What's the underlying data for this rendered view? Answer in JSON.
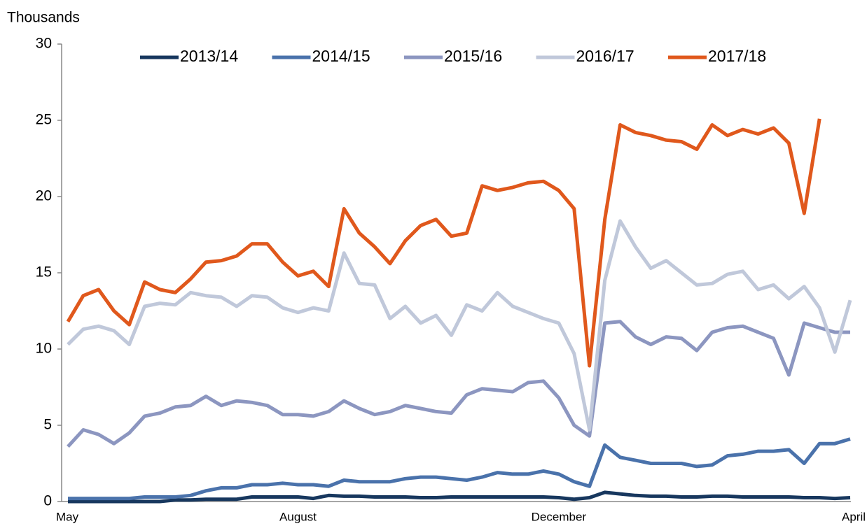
{
  "chart_data": {
    "type": "line",
    "y_label": "Thousands",
    "categories": [
      "May",
      null,
      null,
      null,
      null,
      null,
      null,
      null,
      null,
      null,
      null,
      null,
      null,
      null,
      null,
      "August",
      null,
      null,
      null,
      null,
      null,
      null,
      null,
      null,
      null,
      null,
      null,
      null,
      null,
      null,
      null,
      null,
      "December",
      null,
      null,
      null,
      null,
      null,
      null,
      null,
      null,
      null,
      null,
      null,
      null,
      null,
      null,
      null,
      null,
      null,
      null,
      "April"
    ],
    "ylim": [
      0,
      30
    ],
    "yticks": [
      0,
      5,
      10,
      15,
      20,
      25,
      30
    ],
    "grid": false,
    "legend": "top",
    "series": [
      {
        "name": "2013/14",
        "color": "#17375e",
        "values": [
          0,
          0,
          0,
          0,
          0,
          0,
          0,
          0.1,
          0.1,
          0.15,
          0.15,
          0.15,
          0.3,
          0.3,
          0.3,
          0.3,
          0.2,
          0.4,
          0.35,
          0.35,
          0.3,
          0.3,
          0.3,
          0.25,
          0.25,
          0.3,
          0.3,
          0.3,
          0.3,
          0.3,
          0.3,
          0.3,
          0.25,
          0.15,
          0.25,
          0.6,
          0.5,
          0.4,
          0.35,
          0.35,
          0.3,
          0.3,
          0.35,
          0.35,
          0.3,
          0.3,
          0.3,
          0.3,
          0.25,
          0.25,
          0.2,
          0.25
        ]
      },
      {
        "name": "2014/15",
        "color": "#4a72ab",
        "values": [
          0.2,
          0.2,
          0.2,
          0.2,
          0.2,
          0.3,
          0.3,
          0.3,
          0.4,
          0.7,
          0.9,
          0.9,
          1.1,
          1.1,
          1.2,
          1.1,
          1.1,
          1.0,
          1.4,
          1.3,
          1.3,
          1.3,
          1.5,
          1.6,
          1.6,
          1.5,
          1.4,
          1.6,
          1.9,
          1.8,
          1.8,
          2.0,
          1.8,
          1.3,
          1.0,
          3.7,
          2.9,
          2.7,
          2.5,
          2.5,
          2.5,
          2.3,
          2.4,
          3.0,
          3.1,
          3.3,
          3.3,
          3.4,
          2.5,
          3.8,
          3.8,
          4.1
        ]
      },
      {
        "name": "2015/16",
        "color": "#8c96c0",
        "values": [
          3.6,
          4.7,
          4.4,
          3.8,
          4.5,
          5.6,
          5.8,
          6.2,
          6.3,
          6.9,
          6.3,
          6.6,
          6.5,
          6.3,
          5.7,
          5.7,
          5.6,
          5.9,
          6.6,
          6.1,
          5.7,
          5.9,
          6.3,
          6.1,
          5.9,
          5.8,
          7.0,
          7.4,
          7.3,
          7.2,
          7.8,
          7.9,
          6.8,
          5.0,
          4.3,
          11.7,
          11.8,
          10.8,
          10.3,
          10.8,
          10.7,
          9.9,
          11.1,
          11.4,
          11.5,
          11.1,
          10.7,
          8.3,
          11.7,
          11.4,
          11.1,
          11.1
        ]
      },
      {
        "name": "2016/17",
        "color": "#c0c8da",
        "values": [
          10.3,
          11.3,
          11.5,
          11.2,
          10.3,
          12.8,
          13.0,
          12.9,
          13.7,
          13.5,
          13.4,
          12.8,
          13.5,
          13.4,
          12.7,
          12.4,
          12.7,
          12.5,
          16.3,
          14.3,
          14.2,
          12.0,
          12.8,
          11.7,
          12.2,
          10.9,
          12.9,
          12.5,
          13.7,
          12.8,
          12.4,
          12.0,
          11.7,
          9.7,
          4.7,
          14.5,
          18.4,
          16.7,
          15.3,
          15.8,
          15.0,
          14.2,
          14.3,
          14.9,
          15.1,
          13.9,
          14.2,
          13.3,
          14.1,
          12.7,
          9.8,
          13.2
        ]
      },
      {
        "name": "2017/18",
        "color": "#e0581c",
        "values": [
          11.8,
          13.5,
          13.9,
          12.5,
          11.6,
          14.4,
          13.9,
          13.7,
          14.6,
          15.7,
          15.8,
          16.1,
          16.9,
          16.9,
          15.7,
          14.8,
          15.1,
          14.1,
          19.2,
          17.6,
          16.7,
          15.6,
          17.1,
          18.1,
          18.5,
          17.4,
          17.6,
          20.7,
          20.4,
          20.6,
          20.9,
          21.0,
          20.4,
          19.2,
          8.9,
          18.5,
          24.7,
          24.2,
          24.0,
          23.7,
          23.6,
          23.1,
          24.7,
          24.0,
          24.4,
          24.1,
          24.5,
          23.5,
          18.9,
          25.1,
          null,
          null
        ]
      }
    ]
  }
}
